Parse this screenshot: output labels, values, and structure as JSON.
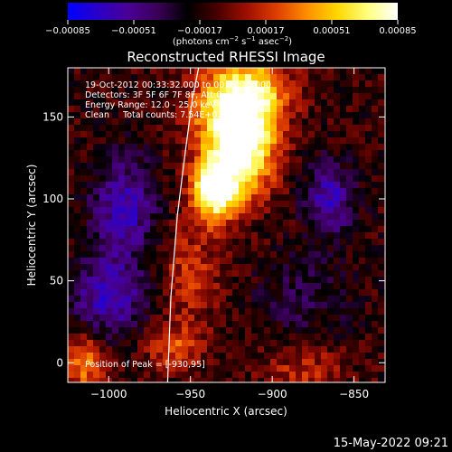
{
  "chart_data": {
    "type": "heatmap",
    "title": "Reconstructed RHESSI Image",
    "xlabel": "Heliocentric X (arcsec)",
    "ylabel": "Heliocentric Y (arcsec)",
    "xlim": [
      -1025,
      -831
    ],
    "ylim": [
      -12,
      180
    ],
    "xticks": [
      -1000,
      -950,
      -900,
      -850
    ],
    "xtick_labels": [
      "−1000",
      "−950",
      "−900",
      "−850"
    ],
    "yticks": [
      0,
      50,
      100,
      150
    ],
    "ytick_labels": [
      "0",
      "50",
      "100",
      "150"
    ],
    "colorbar": {
      "ticks": [
        -0.00085,
        -0.00051,
        -0.00017,
        0.00017,
        0.00051,
        0.00085
      ],
      "tick_labels": [
        "−0.00085",
        "−0.00051",
        "−0.00017",
        "0.00017",
        "0.00051",
        "0.00085"
      ],
      "label_main": "(photons cm",
      "label_sup1": "−2",
      "label_mid": " s",
      "label_sup2": "−1",
      "label_mid2": " asec",
      "label_sup3": "−2",
      "label_end": ")",
      "colormap": [
        "#0000ff",
        "#2a00c8",
        "#4a0096",
        "#3a0058",
        "#000000",
        "#4a0000",
        "#a01000",
        "#e04000",
        "#ff9000",
        "#ffd800",
        "#ffff80",
        "#ffffff"
      ]
    },
    "peak": {
      "x": -930,
      "y": 95
    },
    "limb_curve": [
      [
        -964,
        -12
      ],
      [
        -962,
        40
      ],
      [
        -958,
        90
      ],
      [
        -953,
        130
      ],
      [
        -949,
        160
      ],
      [
        -945,
        180
      ]
    ],
    "annotations": {
      "line1": "19-Oct-2012 00:33:32.000 to 00:37:16.000",
      "line2": "Detectors: 3F 5F 6F 7F 8F, Att:0",
      "line3": "Energy Range: 12.0 - 25.0 keV",
      "line4": "Clean     Total counts: 7.54E+03",
      "peak_label": "Position of Peak = [-930,95]"
    }
  },
  "footer": {
    "timestamp": "15-May-2022 09:21"
  }
}
